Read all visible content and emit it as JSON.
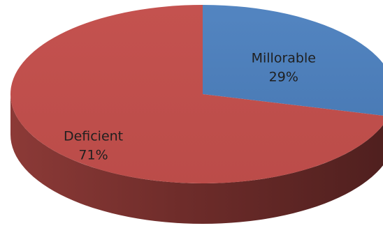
{
  "chart_data": {
    "type": "pie",
    "style": "3d",
    "slices": [
      {
        "label": "Millorable",
        "value": 29,
        "display": "29%",
        "color": "#4f81bd"
      },
      {
        "label": "Deficient",
        "value": 71,
        "display": "71%",
        "color": "#c0504d"
      }
    ],
    "legend": "none",
    "data_labels": "inside"
  }
}
